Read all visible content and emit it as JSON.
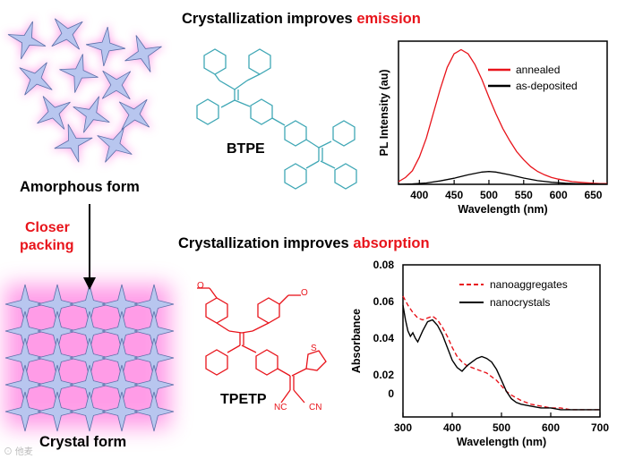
{
  "colors": {
    "red": "#e8141b",
    "teal": "#3fa7b5",
    "black": "#000000",
    "crystal_fill": "#b8c6ef",
    "glow": "#ff5cd8"
  },
  "top": {
    "title_prefix": "Crystallization improves ",
    "title_highlight": "emission",
    "molecule_label": "BTPE"
  },
  "bottom": {
    "title_prefix": "Crystallization improves ",
    "title_highlight": "absorption",
    "molecule_label": "TPETP",
    "nc_left": "NC",
    "cn_right": "CN",
    "s_atom": "S"
  },
  "left": {
    "amorphous_label": "Amorphous form",
    "process_line1": "Closer",
    "process_line2": "packing",
    "crystal_label": "Crystal form",
    "watermark": "⊙ 他麦"
  },
  "chart_data": [
    {
      "type": "line",
      "xlabel": "Wavelength (nm)",
      "ylabel": "PL Intensity (au)",
      "xlim": [
        370,
        670
      ],
      "xticks": [
        400,
        450,
        500,
        550,
        600,
        650
      ],
      "series": [
        {
          "name": "annealed",
          "color": "#e8141b",
          "x": [
            370,
            380,
            390,
            400,
            410,
            420,
            430,
            440,
            450,
            460,
            470,
            480,
            490,
            500,
            510,
            520,
            530,
            540,
            550,
            560,
            570,
            580,
            590,
            600,
            610,
            620,
            630,
            640,
            650,
            660,
            670
          ],
          "y": [
            0.02,
            0.05,
            0.1,
            0.2,
            0.34,
            0.52,
            0.7,
            0.86,
            0.96,
            0.99,
            0.96,
            0.88,
            0.77,
            0.64,
            0.52,
            0.41,
            0.32,
            0.24,
            0.18,
            0.13,
            0.095,
            0.07,
            0.05,
            0.038,
            0.028,
            0.02,
            0.015,
            0.011,
            0.008,
            0.006,
            0.005
          ]
        },
        {
          "name": "as-deposited",
          "color": "#000000",
          "x": [
            370,
            390,
            410,
            430,
            450,
            470,
            490,
            500,
            510,
            530,
            550,
            570,
            590,
            610,
            630,
            650,
            670
          ],
          "y": [
            0.0,
            0.003,
            0.01,
            0.025,
            0.045,
            0.07,
            0.09,
            0.094,
            0.09,
            0.07,
            0.046,
            0.027,
            0.015,
            0.008,
            0.004,
            0.002,
            0.001
          ]
        }
      ],
      "legend": "top-right"
    },
    {
      "type": "line",
      "xlabel": "Wavelength (nm)",
      "ylabel": "Absorbance",
      "xlim": [
        300,
        700
      ],
      "ylim": [
        0,
        0.08
      ],
      "xticks": [
        300,
        400,
        500,
        600,
        700
      ],
      "yticks": [
        {
          "value": 0.08,
          "label": "0.08"
        },
        {
          "value": 0.06,
          "label": "0.06"
        },
        {
          "value": 0.04,
          "label": "0.04"
        },
        {
          "value": 0.02,
          "label": "0.02"
        },
        {
          "value": 0.0,
          "label": "0"
        }
      ],
      "series": [
        {
          "name": "nanoaggregates",
          "color": "#e8141b",
          "dash": true,
          "x": [
            300,
            310,
            320,
            330,
            340,
            350,
            360,
            370,
            380,
            390,
            400,
            410,
            420,
            430,
            440,
            450,
            460,
            470,
            480,
            490,
            500,
            510,
            520,
            540,
            560,
            580,
            600,
            620,
            640,
            660,
            680,
            700
          ],
          "y": [
            0.063,
            0.058,
            0.054,
            0.051,
            0.05,
            0.051,
            0.052,
            0.05,
            0.046,
            0.041,
            0.035,
            0.03,
            0.027,
            0.025,
            0.024,
            0.023,
            0.022,
            0.021,
            0.019,
            0.017,
            0.014,
            0.011,
            0.009,
            0.006,
            0.004,
            0.003,
            0.002,
            0.002,
            0.001,
            0.001,
            0.001,
            0.001
          ]
        },
        {
          "name": "nanocrystals",
          "color": "#000000",
          "dash": false,
          "x": [
            300,
            305,
            310,
            315,
            320,
            325,
            330,
            340,
            350,
            360,
            370,
            380,
            390,
            400,
            410,
            420,
            430,
            440,
            450,
            460,
            470,
            480,
            490,
            500,
            510,
            520,
            530,
            540,
            560,
            580,
            600,
            620,
            640,
            660,
            680,
            700
          ],
          "y": [
            0.058,
            0.05,
            0.044,
            0.041,
            0.043,
            0.04,
            0.038,
            0.044,
            0.049,
            0.05,
            0.047,
            0.042,
            0.035,
            0.028,
            0.024,
            0.022,
            0.025,
            0.027,
            0.029,
            0.03,
            0.029,
            0.027,
            0.023,
            0.017,
            0.011,
            0.007,
            0.005,
            0.004,
            0.003,
            0.002,
            0.002,
            0.001,
            0.001,
            0.001,
            0.001,
            0.001
          ]
        }
      ],
      "legend": "top-right"
    }
  ]
}
